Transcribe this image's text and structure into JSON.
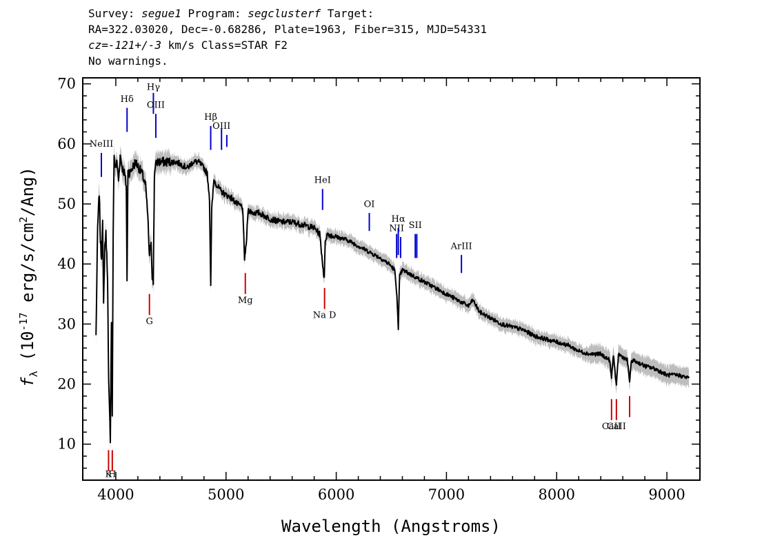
{
  "header": {
    "line1_prefix": "Survey: ",
    "survey": "segue1",
    "line1_mid": " Program: ",
    "program": "segclusterf",
    "line1_suffix": " Target:",
    "line2": "RA=322.03020, Dec=-0.68286, Plate=1963, Fiber=315, MJD=54331",
    "cz": "cz=-121+/-3",
    "line3_suffix": " km/s Class=STAR F2",
    "line4": "No warnings."
  },
  "chart_data": {
    "type": "line",
    "title": "",
    "xlabel": "Wavelength (Angstroms)",
    "ylabel": "f_λ (10^-17 erg/s/cm^2/Ang)",
    "xlim": [
      3700,
      9300
    ],
    "ylim": [
      4,
      71
    ],
    "x_ticks": [
      4000,
      5000,
      6000,
      7000,
      8000,
      9000
    ],
    "y_ticks": [
      10,
      20,
      30,
      40,
      50,
      60,
      70
    ],
    "colors": {
      "spectrum": "#000000",
      "error": "#bdbdbd",
      "emission": "#0000cc",
      "absorption": "#cc0000"
    },
    "series": [
      {
        "x": [
          3820,
          3835,
          3850,
          3860,
          3870,
          3880,
          3889,
          3900,
          3910,
          3925,
          3935,
          3950,
          3960,
          3968,
          3976,
          3985,
          3995,
          4010,
          4025,
          4040,
          4060,
          4080,
          4095,
          4102,
          4110,
          4125,
          4150,
          4180,
          4210,
          4240,
          4270,
          4290,
          4305,
          4320,
          4330,
          4340,
          4350,
          4370,
          4400,
          4450,
          4500,
          4550,
          4600,
          4650,
          4700,
          4750,
          4800,
          4830,
          4850,
          4861,
          4870,
          4890,
          4920,
          4960,
          5000,
          5050,
          5100,
          5150,
          5168,
          5175,
          5183,
          5200,
          5250,
          5300,
          5400,
          5500,
          5600,
          5700,
          5800,
          5850,
          5885,
          5892,
          5900,
          5920,
          6000,
          6100,
          6200,
          6300,
          6400,
          6480,
          6530,
          6550,
          6563,
          6575,
          6600,
          6700,
          6800,
          6900,
          7000,
          7100,
          7200,
          7240,
          7300,
          7400,
          7500,
          7600,
          7700,
          7800,
          7900,
          8000,
          8100,
          8200,
          8300,
          8400,
          8480,
          8498,
          8515,
          8542,
          8560,
          8600,
          8640,
          8662,
          8680,
          8750,
          8800,
          8900,
          8950,
          9000,
          9100,
          9200
        ],
        "y": [
          28.0,
          46.0,
          52.0,
          44.0,
          41.0,
          47.0,
          33.0,
          43.0,
          45.0,
          38.0,
          20.0,
          11.0,
          30.0,
          15.0,
          45.0,
          58.0,
          56.0,
          57.0,
          54.0,
          58.0,
          56.0,
          55.0,
          53.0,
          37.0,
          56.0,
          55.0,
          56.0,
          57.0,
          56.0,
          55.0,
          53.0,
          48.0,
          41.0,
          44.0,
          38.0,
          37.0,
          55.0,
          57.0,
          57.0,
          57.0,
          57.0,
          57.0,
          56.5,
          56.0,
          57.0,
          57.0,
          56.0,
          55.0,
          51.0,
          36.5,
          49.0,
          54.0,
          53.0,
          52.0,
          51.5,
          51.0,
          50.0,
          49.5,
          41.0,
          42.0,
          43.0,
          49.0,
          48.5,
          48.5,
          47.5,
          47.0,
          47.0,
          46.5,
          46.0,
          45.0,
          38.5,
          37.5,
          44.0,
          45.0,
          44.5,
          44.0,
          43.0,
          42.0,
          41.0,
          40.0,
          39.0,
          35.0,
          29.0,
          38.0,
          39.0,
          38.0,
          37.0,
          36.0,
          35.0,
          34.0,
          33.0,
          34.0,
          32.0,
          31.0,
          30.0,
          29.5,
          29.0,
          28.0,
          27.5,
          27.0,
          26.5,
          25.5,
          25.0,
          25.0,
          24.0,
          21.0,
          25.0,
          19.5,
          25.0,
          24.5,
          24.0,
          20.5,
          24.0,
          23.5,
          23.0,
          22.5,
          22.0,
          21.5,
          21.5,
          21.0
        ]
      }
    ],
    "emission_lines": [
      {
        "label": "NeIII",
        "x": 3869,
        "y0": 54.5,
        "y1": 58.5,
        "ly": 59.5
      },
      {
        "label": "Hδ",
        "x": 4102,
        "y0": 62.0,
        "y1": 66.0,
        "ly": 67.0
      },
      {
        "label": "Hγ",
        "x": 4341,
        "y0": 65.0,
        "y1": 68.5,
        "ly": 69.0
      },
      {
        "label": "OIII",
        "x": 4363,
        "y0": 61.0,
        "y1": 65.0,
        "ly": 66.0
      },
      {
        "label": "Hβ",
        "x": 4861,
        "y0": 59.0,
        "y1": 63.0,
        "ly": 64.0
      },
      {
        "label": "OIII",
        "x": 4959,
        "y0": 59.0,
        "y1": 62.5,
        "ly": 62.5
      },
      {
        "label": "OIII",
        "x": 5007,
        "y0": 59.5,
        "y1": 61.5,
        "ly": 62.5
      },
      {
        "label": "HeI",
        "x": 5876,
        "y0": 49.0,
        "y1": 52.5,
        "ly": 53.5
      },
      {
        "label": "OI",
        "x": 6300,
        "y0": 45.5,
        "y1": 48.5,
        "ly": 49.5
      },
      {
        "label": "NII",
        "x": 6548,
        "y0": 41.0,
        "y1": 45.0,
        "ly": 45.5
      },
      {
        "label": "Hα",
        "x": 6563,
        "y0": 41.5,
        "y1": 46.0,
        "ly": 47.0
      },
      {
        "label": "NII",
        "x": 6584,
        "y0": 41.0,
        "y1": 44.5,
        "ly": 45.0
      },
      {
        "label": "SII",
        "x": 6717,
        "y0": 41.0,
        "y1": 45.0,
        "ly": 46.0
      },
      {
        "label": "SII",
        "x": 6731,
        "y0": 41.0,
        "y1": 45.0,
        "ly": 46.0
      },
      {
        "label": "ArIII",
        "x": 7136,
        "y0": 38.5,
        "y1": 41.5,
        "ly": 42.5
      }
    ],
    "absorption_lines": [
      {
        "label": "K",
        "x": 3934,
        "y0": 5.5,
        "y1": 9.0,
        "ly": 4.5
      },
      {
        "label": "H",
        "x": 3968,
        "y0": 5.5,
        "y1": 9.0,
        "ly": 4.5
      },
      {
        "label": "G",
        "x": 4305,
        "y0": 31.5,
        "y1": 35.0,
        "ly": 30.0
      },
      {
        "label": "Mg",
        "x": 5175,
        "y0": 35.0,
        "y1": 38.5,
        "ly": 33.5
      },
      {
        "label": "Na D",
        "x": 5894,
        "y0": 32.5,
        "y1": 36.0,
        "ly": 31.0
      },
      {
        "label": "CaII",
        "x": 8498,
        "y0": 14.0,
        "y1": 17.5,
        "ly": 12.5
      },
      {
        "label": "CaII",
        "x": 8542,
        "y0": 14.0,
        "y1": 17.5,
        "ly": 12.5
      },
      {
        "label": "CaII",
        "x": 8662,
        "y0": 14.5,
        "y1": 18.0,
        "ly": 12.5
      }
    ]
  }
}
